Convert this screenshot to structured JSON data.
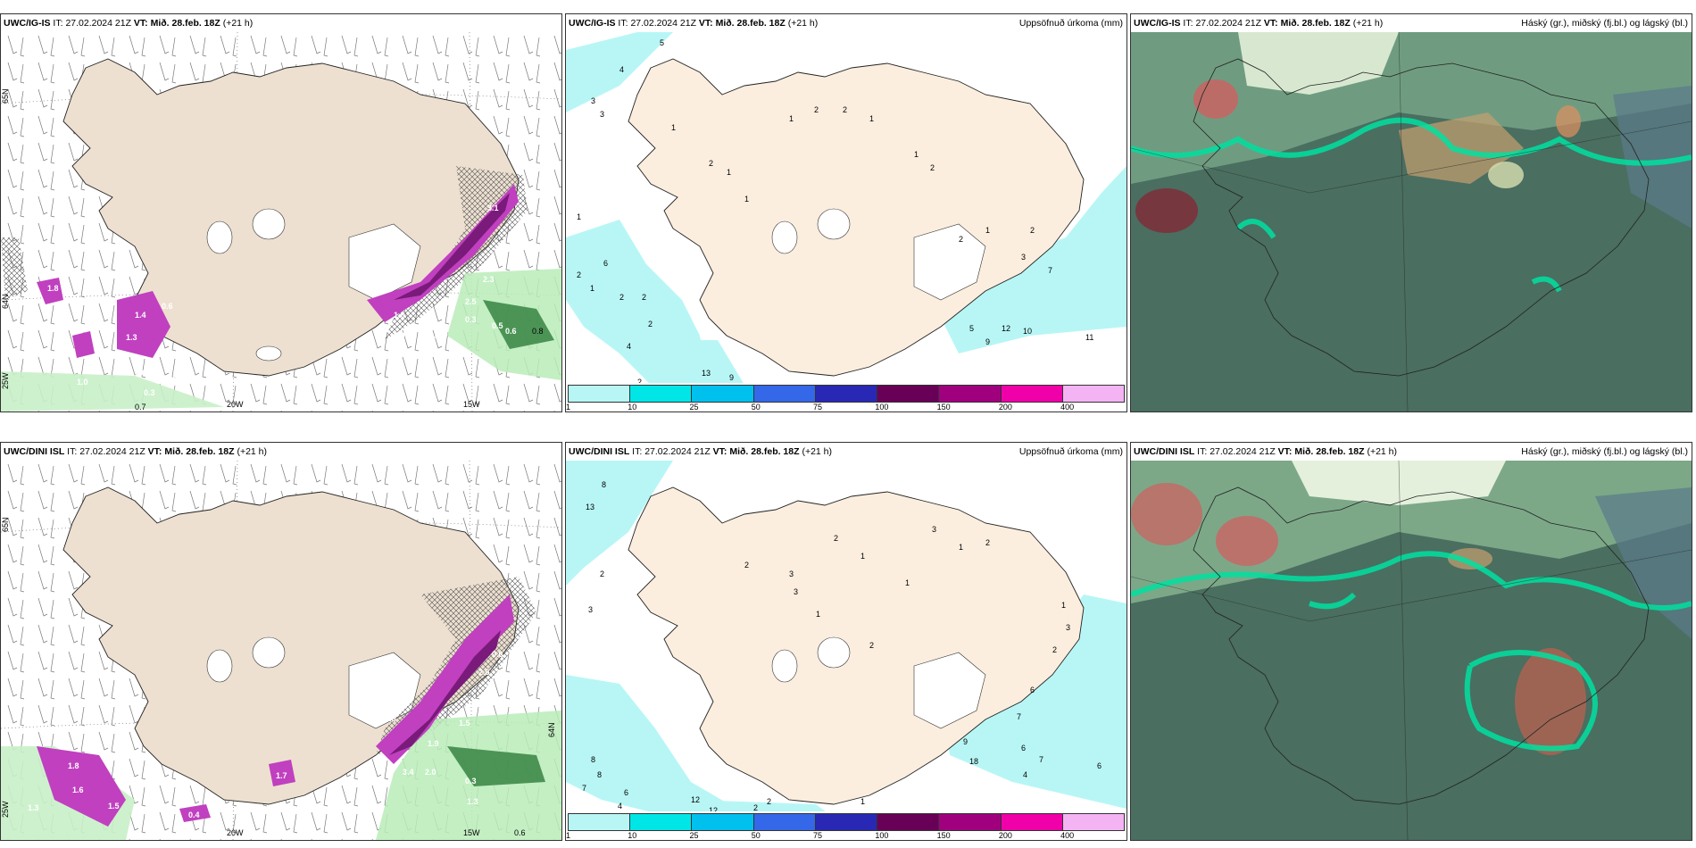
{
  "rows": [
    {
      "model": "UWC/IG-IS",
      "it_label": "IT:",
      "it_value": "27.02.2024 21Z",
      "vt_label": "VT:",
      "vt_value": "Mið. 28.feb. 18Z",
      "lead": "(+21 h)"
    },
    {
      "model": "UWC/DINI ISL",
      "it_label": "IT:",
      "it_value": "27.02.2024 21Z",
      "vt_label": "VT:",
      "vt_value": "Mið. 28.feb. 18Z",
      "lead": "(+21 h)"
    }
  ],
  "precip_title": "Uppsöfnuð úrkoma (mm)",
  "cloud_title": "Háský (gr.), miðský (fj.bl.) og lágský (bl.)",
  "colorbar": {
    "labels": [
      "1",
      "10",
      "25",
      "50",
      "75",
      "100",
      "150",
      "200",
      "400"
    ],
    "colors": [
      "#b8f6f6",
      "#00e6e6",
      "#00c0ee",
      "#3568e8",
      "#2828b4",
      "#680058",
      "#a0007e",
      "#f000a8",
      "#f4b4f4"
    ]
  },
  "grid_labels": {
    "lat65": "65N",
    "lat64": "64N",
    "lon20": "20W",
    "lon15": "15W",
    "lon25": "25W"
  },
  "wind_panel_values": {
    "top": [
      "1.8",
      "1.4",
      "0.6",
      "1.3",
      "4.0",
      "2.6",
      "1.0",
      "0.7",
      "0.3",
      "2.0",
      "2.5",
      "0.3",
      "0.5",
      "0.6",
      "0.8",
      "2.5",
      "3.0",
      "3.1",
      "2.3",
      "1.6"
    ],
    "bottom": [
      "1.8",
      "1.6",
      "1.5",
      "1.3",
      "0.4",
      "1.7",
      "3.4",
      "2.5",
      "1.9",
      "1.5",
      "0.3",
      "2.0",
      "0.6",
      "1.3",
      "0.6",
      "2.6"
    ]
  },
  "precip_values": {
    "top": [
      "4",
      "5",
      "3",
      "3",
      "1",
      "1",
      "1",
      "2",
      "2",
      "1",
      "2",
      "1",
      "1",
      "2",
      "1",
      "6",
      "2",
      "2",
      "2",
      "4",
      "2",
      "13",
      "9",
      "2",
      "5",
      "9",
      "12",
      "10",
      "11",
      "7",
      "3",
      "2",
      "1",
      "2",
      "1",
      "2"
    ],
    "bottom": [
      "8",
      "13",
      "2",
      "3",
      "2",
      "3",
      "2",
      "1",
      "1",
      "3",
      "1",
      "2",
      "3",
      "1",
      "2",
      "8",
      "8",
      "7",
      "6",
      "4",
      "12",
      "12",
      "2",
      "2",
      "1",
      "9",
      "18",
      "6",
      "7",
      "4",
      "6",
      "7",
      "6",
      "2",
      "3",
      "1"
    ]
  }
}
